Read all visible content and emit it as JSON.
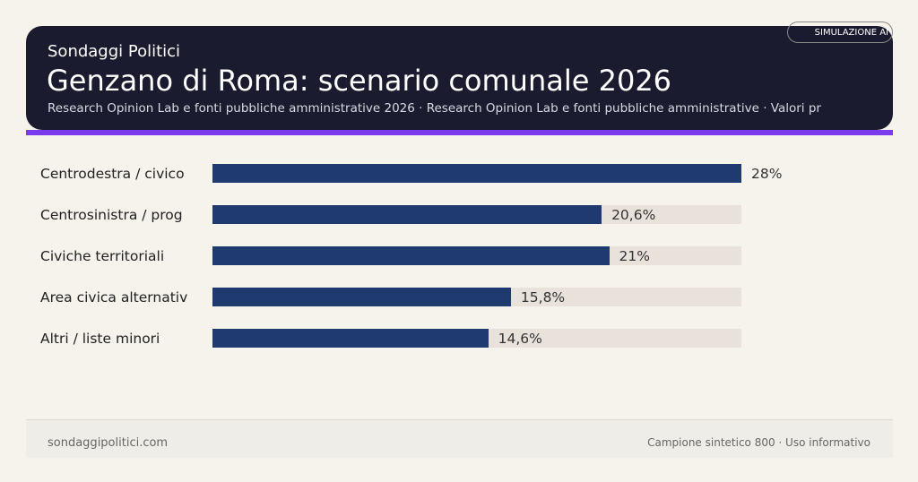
{
  "header": {
    "brand": "Sondaggi Politici",
    "title": "Genzano di Roma: scenario comunale 2026",
    "subtitle": "Research Opinion Lab e fonti pubbliche amministrative 2026 · Research Opinion Lab e fonti pubbliche amministrative · Valori pr",
    "badge": "SIMULAZIONE AI"
  },
  "chart_data": {
    "type": "bar",
    "orientation": "horizontal",
    "categories": [
      "Centrodestra / civico",
      "Centrosinistra / prog",
      "Civiche territoriali",
      "Area civica alternativ",
      "Altri / liste minori"
    ],
    "values": [
      28,
      20.6,
      21,
      15.8,
      14.6
    ],
    "value_labels": [
      "28%",
      "20,6%",
      "21%",
      "15,8%",
      "14,6%"
    ],
    "xlim": [
      0,
      28
    ],
    "grid": false,
    "colors": {
      "bar": "#1e3a6e",
      "track": "#e8e2da"
    }
  },
  "footer": {
    "left": "sondaggipolitici.com",
    "right": "Campione sintetico 800 · Uso informativo"
  }
}
